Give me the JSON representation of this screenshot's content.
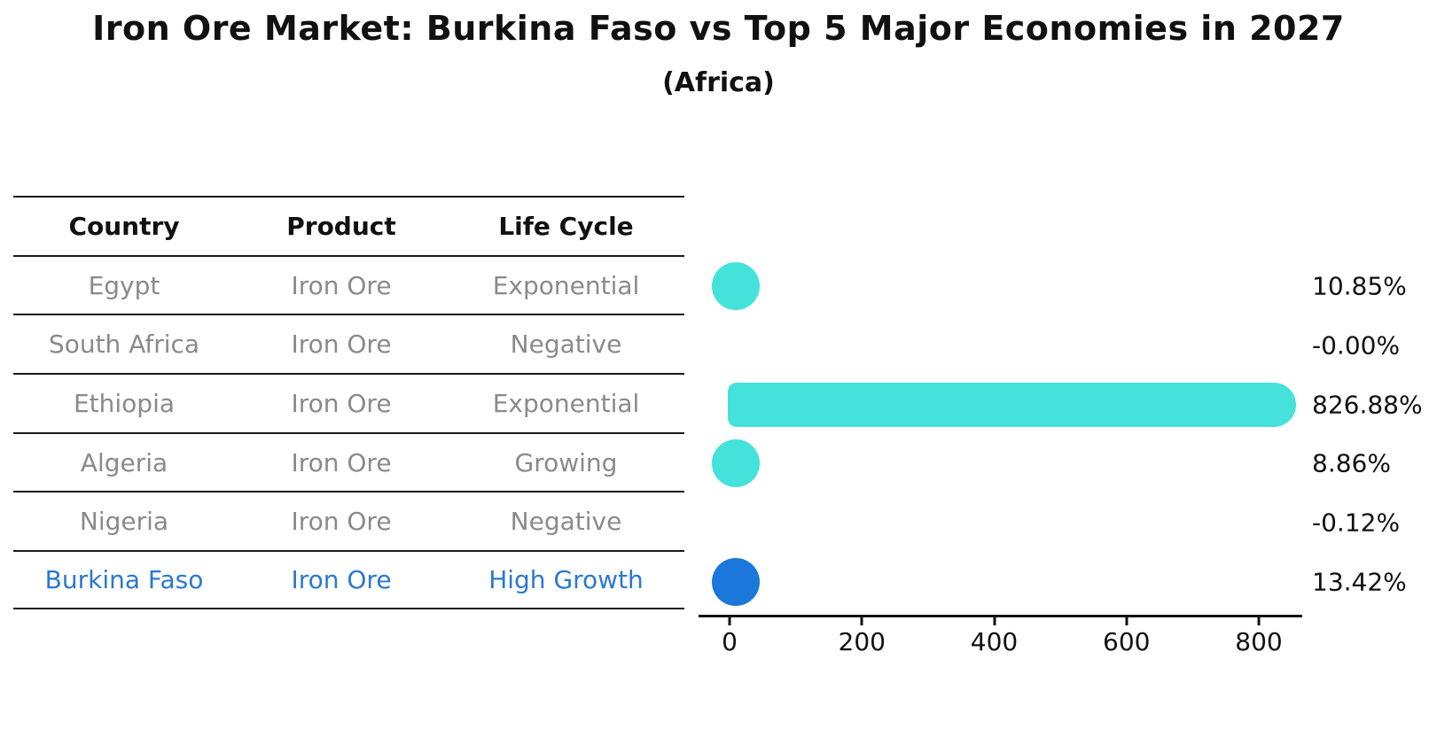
{
  "title": "Iron Ore Market: Burkina Faso vs Top 5 Major Economies in 2027",
  "subtitle": "(Africa)",
  "table": {
    "headers": [
      "Country",
      "Product",
      "Life Cycle"
    ],
    "rows": [
      {
        "country": "Egypt",
        "product": "Iron Ore",
        "life_cycle": "Exponential",
        "highlight": false
      },
      {
        "country": "South Africa",
        "product": "Iron Ore",
        "life_cycle": "Negative",
        "highlight": false
      },
      {
        "country": "Ethiopia",
        "product": "Iron Ore",
        "life_cycle": "Exponential",
        "highlight": false
      },
      {
        "country": "Algeria",
        "product": "Iron Ore",
        "life_cycle": "Growing",
        "highlight": false
      },
      {
        "country": "Nigeria",
        "product": "Iron Ore",
        "life_cycle": "Negative",
        "highlight": false
      },
      {
        "country": "Burkina Faso",
        "product": "Iron Ore",
        "life_cycle": "High Growth",
        "highlight": true
      }
    ]
  },
  "chart_data": {
    "type": "bar",
    "orientation": "horizontal",
    "title": "",
    "xlabel": "",
    "ylabel": "",
    "categories": [
      "Egypt",
      "South Africa",
      "Ethiopia",
      "Algeria",
      "Nigeria",
      "Burkina Faso"
    ],
    "values": [
      10.85,
      -0.0,
      826.88,
      8.86,
      -0.12,
      13.42
    ],
    "value_labels": [
      "10.85%",
      "-0.00%",
      "826.88%",
      "8.86%",
      "-0.12%",
      "13.42%"
    ],
    "unit": "percent growth",
    "x_ticks": [
      0,
      200,
      400,
      600,
      800
    ],
    "xlim": [
      -47,
      865
    ],
    "grid": false,
    "legend": "none",
    "highlight_index": 5,
    "colors": {
      "default": "#45e2db",
      "highlight": "#1b77d9"
    }
  },
  "colors": {
    "background": "#ffffff",
    "text_primary": "#111111",
    "text_muted": "#8a8a8a",
    "text_highlight": "#2a79cf",
    "rule": "#1a1a1a",
    "bar_default": "#45e2db",
    "bar_highlight": "#1b77d9"
  }
}
